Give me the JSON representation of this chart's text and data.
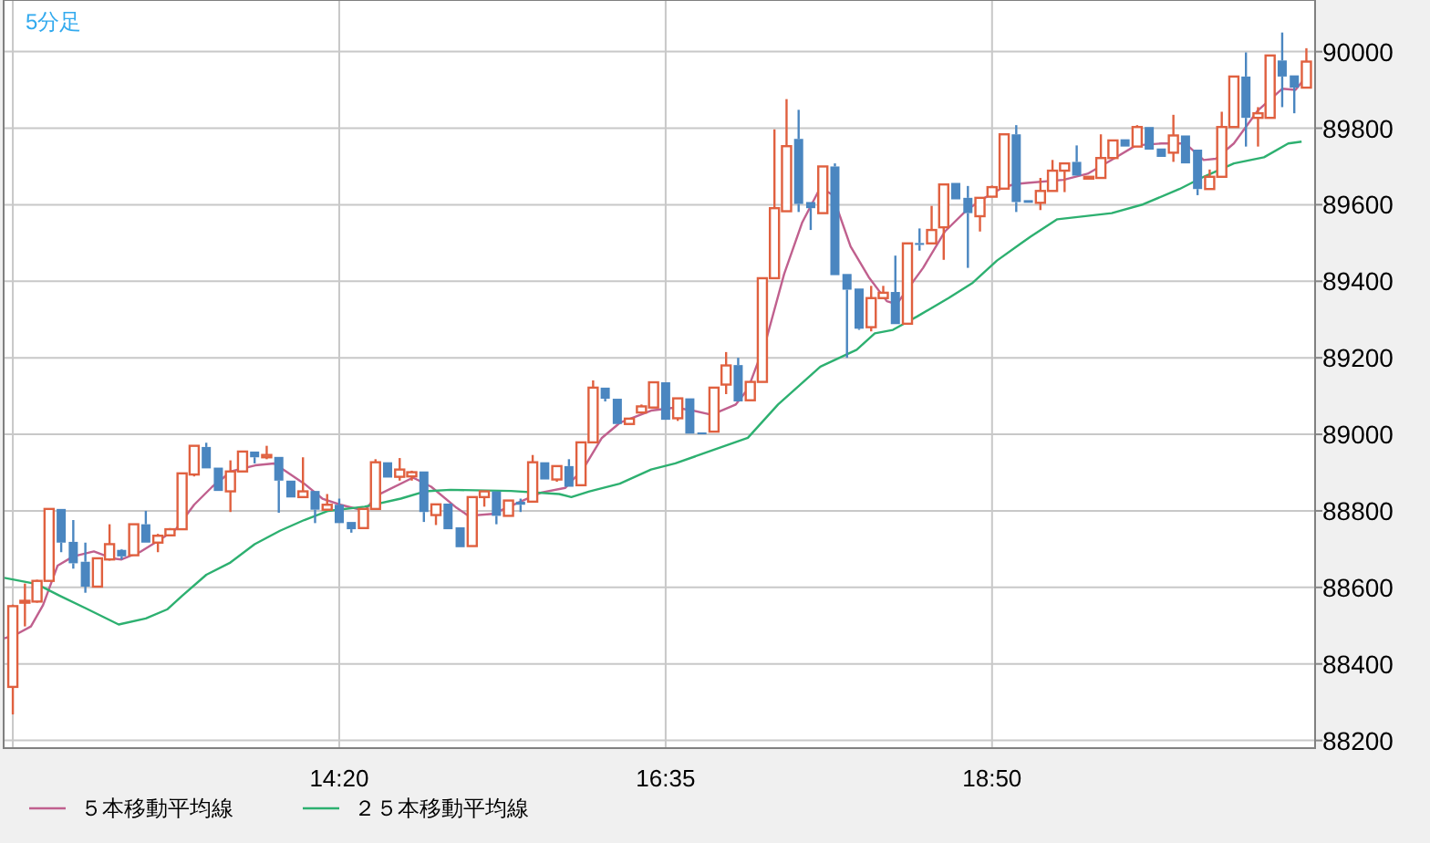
{
  "chart_data": {
    "type": "candlestick",
    "title": "5分足",
    "x": [
      12.0833,
      12.1667,
      12.25,
      12.3333,
      12.4167,
      12.5,
      12.5833,
      12.6667,
      12.75,
      12.8333,
      12.9167,
      13,
      13.0833,
      13.1667,
      13.25,
      13.3333,
      13.4167,
      13.5,
      13.5833,
      13.6667,
      13.75,
      13.8333,
      13.9167,
      14,
      14.0833,
      14.1667,
      14.25,
      14.3333,
      14.4167,
      14.5,
      14.5833,
      14.6667,
      14.75,
      14.8333,
      14.9167,
      15,
      15.0833,
      15.1667,
      15.25,
      15.3333,
      15.4167,
      15.5,
      15.5833,
      15.6667,
      15.75,
      15.8333,
      15.9167,
      16,
      16.0833,
      16.1667,
      16.25,
      16.3333,
      16.4167,
      16.5,
      16.5833,
      16.6667,
      16.75,
      16.8333,
      16.9167,
      17,
      17.0833,
      17.1667,
      17.25,
      17.3333,
      17.4167,
      17.5,
      17.5833,
      17.6667,
      17.75,
      17.8333,
      17.9167,
      18,
      18.0833,
      18.1667,
      18.25,
      18.3333,
      18.4167,
      18.5,
      18.5833,
      18.6667,
      18.75,
      18.8333,
      18.9167,
      19,
      19.0833,
      19.1667,
      19.25,
      19.3333,
      19.4167,
      19.5,
      19.5833,
      19.6667,
      19.75,
      19.8333,
      19.9167,
      20,
      20.0833,
      20.1667,
      20.25,
      20.3333,
      20.4167,
      20.5,
      20.5833,
      20.6667,
      20.75,
      20.8333,
      20.9167,
      21
    ],
    "ohlc": [
      [
        88340,
        88555,
        88268,
        88551
      ],
      [
        88560,
        88610,
        88498,
        88565
      ],
      [
        88563,
        88620,
        88560,
        88617
      ],
      [
        88617,
        88805,
        88617,
        88805
      ],
      [
        88805,
        88805,
        88692,
        88717
      ],
      [
        88719,
        88776,
        88649,
        88663
      ],
      [
        88667,
        88717,
        88586,
        88602
      ],
      [
        88602,
        88676,
        88602,
        88676
      ],
      [
        88673,
        88765,
        88670,
        88713
      ],
      [
        88698,
        88700,
        88673,
        88681
      ],
      [
        88684,
        88765,
        88684,
        88765
      ],
      [
        88765,
        88800,
        88717,
        88717
      ],
      [
        88717,
        88740,
        88692,
        88735
      ],
      [
        88736,
        88755,
        88735,
        88752
      ],
      [
        88752,
        88898,
        88752,
        88898
      ],
      [
        88895,
        88970,
        88890,
        88970
      ],
      [
        88967,
        88978,
        88911,
        88911
      ],
      [
        88913,
        88913,
        88852,
        88852
      ],
      [
        88851,
        88932,
        88797,
        88903
      ],
      [
        88903,
        88955,
        88903,
        88955
      ],
      [
        88955,
        88955,
        88924,
        88940
      ],
      [
        88940,
        88970,
        88935,
        88946
      ],
      [
        88941,
        88941,
        88795,
        88879
      ],
      [
        88879,
        88879,
        88835,
        88835
      ],
      [
        88836,
        88940,
        88835,
        88851
      ],
      [
        88852,
        88852,
        88768,
        88803
      ],
      [
        88803,
        88844,
        88800,
        88816
      ],
      [
        88816,
        88832,
        88768,
        88768
      ],
      [
        88771,
        88771,
        88743,
        88752
      ],
      [
        88755,
        88805,
        88755,
        88805
      ],
      [
        88805,
        88935,
        88805,
        88927
      ],
      [
        88927,
        88927,
        88887,
        88887
      ],
      [
        88889,
        88938,
        88879,
        88908
      ],
      [
        88890,
        88905,
        88879,
        88901
      ],
      [
        88903,
        88903,
        88771,
        88797
      ],
      [
        88789,
        88817,
        88763,
        88817
      ],
      [
        88819,
        88819,
        88752,
        88752
      ],
      [
        88757,
        88757,
        88705,
        88705
      ],
      [
        88708,
        88836,
        88708,
        88836
      ],
      [
        88836,
        88851,
        88811,
        88851
      ],
      [
        88851,
        88851,
        88765,
        88787
      ],
      [
        88787,
        88827,
        88787,
        88827
      ],
      [
        88824,
        88832,
        88797,
        88816
      ],
      [
        88824,
        88946,
        88824,
        88927
      ],
      [
        88927,
        88927,
        88882,
        88882
      ],
      [
        88882,
        88917,
        88876,
        88917
      ],
      [
        88917,
        88935,
        88863,
        88863
      ],
      [
        88867,
        88979,
        88867,
        88979
      ],
      [
        88979,
        89141,
        88979,
        89122
      ],
      [
        89122,
        89122,
        89086,
        89093
      ],
      [
        89093,
        89093,
        89027,
        89027
      ],
      [
        89027,
        89041,
        89027,
        89041
      ],
      [
        89057,
        89078,
        89057,
        89073
      ],
      [
        89070,
        89136,
        89070,
        89136
      ],
      [
        89136,
        89136,
        89038,
        89038
      ],
      [
        89042,
        89094,
        89035,
        89094
      ],
      [
        89094,
        89094,
        89002,
        89002
      ],
      [
        89005,
        89005,
        89000,
        89000
      ],
      [
        89007,
        89122,
        89007,
        89122
      ],
      [
        89130,
        89215,
        89105,
        89180
      ],
      [
        89181,
        89200,
        89086,
        89086
      ],
      [
        89089,
        89137,
        89089,
        89137
      ],
      [
        89137,
        89408,
        89137,
        89408
      ],
      [
        89408,
        89797,
        89408,
        89591
      ],
      [
        89583,
        89876,
        89583,
        89753
      ],
      [
        89772,
        89848,
        89581,
        89602
      ],
      [
        89607,
        89607,
        89534,
        89591
      ],
      [
        89578,
        89700,
        89578,
        89700
      ],
      [
        89700,
        89708,
        89416,
        89416
      ],
      [
        89419,
        89419,
        89200,
        89378
      ],
      [
        89381,
        89381,
        89273,
        89276
      ],
      [
        89280,
        89388,
        89269,
        89356
      ],
      [
        89356,
        89388,
        89356,
        89370
      ],
      [
        89372,
        89467,
        89288,
        89288
      ],
      [
        89289,
        89499,
        89289,
        89499
      ],
      [
        89500,
        89538,
        89480,
        89495
      ],
      [
        89499,
        89597,
        89499,
        89534
      ],
      [
        89541,
        89653,
        89456,
        89653
      ],
      [
        89657,
        89657,
        89614,
        89614
      ],
      [
        89618,
        89649,
        89435,
        89578
      ],
      [
        89570,
        89618,
        89530,
        89618
      ],
      [
        89621,
        89650,
        89621,
        89646
      ],
      [
        89642,
        89784,
        89642,
        89784
      ],
      [
        89784,
        89808,
        89581,
        89607
      ],
      [
        89612,
        89612,
        89605,
        89605
      ],
      [
        89605,
        89670,
        89586,
        89636
      ],
      [
        89636,
        89717,
        89636,
        89689
      ],
      [
        89689,
        89708,
        89633,
        89708
      ],
      [
        89712,
        89755,
        89676,
        89676
      ],
      [
        89670,
        89673,
        89670,
        89673
      ],
      [
        89670,
        89784,
        89670,
        89722
      ],
      [
        89722,
        89768,
        89722,
        89768
      ],
      [
        89771,
        89771,
        89752,
        89752
      ],
      [
        89752,
        89808,
        89752,
        89803
      ],
      [
        89803,
        89803,
        89744,
        89744
      ],
      [
        89747,
        89747,
        89725,
        89725
      ],
      [
        89736,
        89835,
        89712,
        89781
      ],
      [
        89781,
        89781,
        89708,
        89708
      ],
      [
        89744,
        89744,
        89625,
        89641
      ],
      [
        89641,
        89692,
        89641,
        89673
      ],
      [
        89673,
        89843,
        89673,
        89803
      ],
      [
        89803,
        89935,
        89803,
        89935
      ],
      [
        89935,
        89998,
        89752,
        89827
      ],
      [
        89827,
        89855,
        89752,
        89839
      ],
      [
        89827,
        89990,
        89827,
        89990
      ],
      [
        89977,
        90050,
        89855,
        89935
      ],
      [
        89938,
        89938,
        89839,
        89906
      ],
      [
        89906,
        90009,
        89906,
        89974
      ]
    ],
    "series": [
      {
        "name": "５本移動平均線",
        "type": "line",
        "color": "#c0608e",
        "x": [
          12.025,
          12.096,
          12.208,
          12.292,
          12.392,
          12.5,
          12.642,
          12.767,
          12.833,
          12.958,
          13.083,
          13.208,
          13.333,
          13.458,
          13.588,
          13.754,
          13.883,
          13.967,
          14.092,
          14.217,
          14.342,
          14.508,
          14.592,
          14.842,
          14.967,
          15.142,
          15.225,
          15.392,
          15.6,
          15.725,
          15.892,
          16.017,
          16.142,
          16.267,
          16.483,
          16.65,
          16.775,
          16.9,
          17.067,
          17.15,
          17.275,
          17.4,
          17.525,
          17.65,
          17.733,
          17.858,
          17.983,
          18.108,
          18.175,
          18.358,
          18.508,
          18.658,
          18.783,
          18.908,
          18.992,
          19.075,
          19.325,
          19.492,
          19.658,
          19.825,
          20.0,
          20.167,
          20.292,
          20.375,
          20.5,
          20.667,
          20.833,
          20.925,
          20.983
        ],
        "values": [
          88467,
          88475,
          88498,
          88554,
          88657,
          88681,
          88694,
          88676,
          88673,
          88692,
          88721,
          88752,
          88816,
          88863,
          88903,
          88919,
          88924,
          88903,
          88871,
          88832,
          88816,
          88800,
          88840,
          88887,
          88863,
          88808,
          88787,
          88792,
          88827,
          88848,
          88860,
          88911,
          88990,
          89030,
          89062,
          89070,
          89062,
          89051,
          89078,
          89118,
          89245,
          89419,
          89554,
          89645,
          89626,
          89491,
          89411,
          89348,
          89340,
          89435,
          89530,
          89586,
          89618,
          89645,
          89654,
          89657,
          89665,
          89681,
          89717,
          89755,
          89760,
          89760,
          89717,
          89720,
          89760,
          89847,
          89903,
          89900,
          89927
        ]
      },
      {
        "name": "２５本移動平均線",
        "type": "line",
        "color": "#2db070",
        "x": [
          12.025,
          12.247,
          12.408,
          12.583,
          12.813,
          13.0,
          13.15,
          13.25,
          13.417,
          13.583,
          13.75,
          13.925,
          14.092,
          14.258,
          14.508,
          14.758,
          14.925,
          15.1,
          15.517,
          15.85,
          15.933,
          16.058,
          16.267,
          16.483,
          16.65,
          17.15,
          17.358,
          17.65,
          17.9,
          18.025,
          18.15,
          18.317,
          18.533,
          18.7,
          18.867,
          19.033,
          19.1,
          19.283,
          19.658,
          19.875,
          20.125,
          20.292,
          20.5,
          20.708,
          20.875,
          20.967
        ],
        "values": [
          88625,
          88609,
          88578,
          88546,
          88503,
          88519,
          88543,
          88578,
          88633,
          88665,
          88713,
          88748,
          88776,
          88800,
          88811,
          88832,
          88851,
          88855,
          88852,
          88844,
          88836,
          88851,
          88871,
          88908,
          88924,
          88991,
          89078,
          89177,
          89221,
          89264,
          89273,
          89308,
          89356,
          89396,
          89454,
          89499,
          89517,
          89562,
          89578,
          89601,
          89641,
          89673,
          89708,
          89724,
          89760,
          89765
        ]
      }
    ],
    "xlim": [
      12.02,
      21.06
    ],
    "ylim": [
      88180,
      90135
    ],
    "xticks": [
      {
        "value": 12.0833,
        "label": null
      },
      {
        "value": 14.3333,
        "label": "14:20"
      },
      {
        "value": 16.5833,
        "label": "16:35"
      },
      {
        "value": 18.8333,
        "label": "18:50"
      }
    ],
    "yticks": [
      88200,
      88400,
      88600,
      88800,
      89000,
      89200,
      89400,
      89600,
      89800,
      90000
    ],
    "grid": true,
    "legend": "bottom"
  }
}
